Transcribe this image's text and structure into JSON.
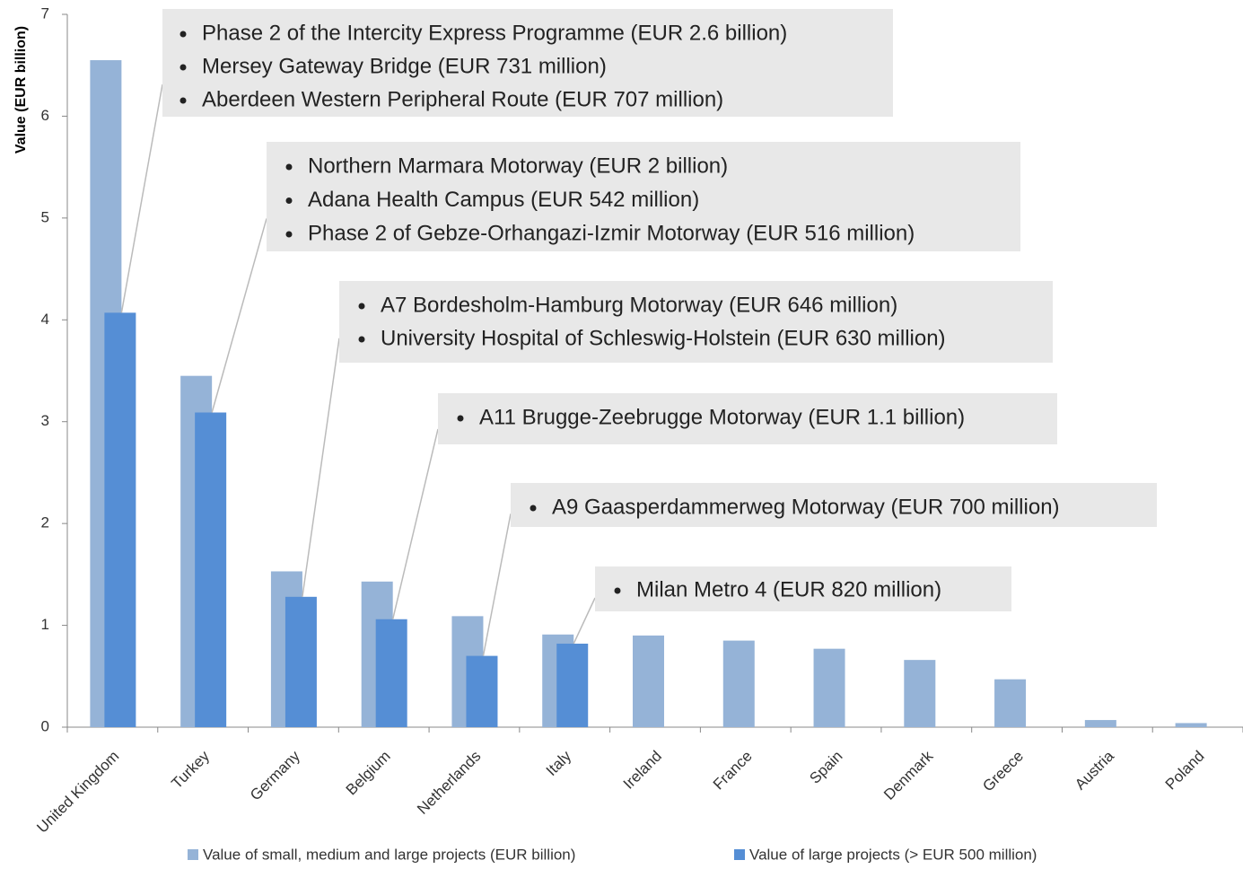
{
  "chart_data": {
    "type": "bar",
    "y_label": "Value (EUR billion)",
    "categories": [
      "United Kingdom",
      "Turkey",
      "Germany",
      "Belgium",
      "Netherlands",
      "Italy",
      "Ireland",
      "France",
      "Spain",
      "Denmark",
      "Greece",
      "Austria",
      "Poland"
    ],
    "series": [
      {
        "name": "Value of small, medium and large projects (EUR billion)",
        "color": "#95b3d7",
        "values": [
          6.55,
          3.45,
          1.53,
          1.43,
          1.09,
          0.91,
          0.9,
          0.85,
          0.77,
          0.66,
          0.47,
          0.07,
          0.04
        ]
      },
      {
        "name": "Value of large projects (> EUR 500 million)",
        "color": "#558ed5",
        "values": [
          4.07,
          3.09,
          1.28,
          1.06,
          0.7,
          0.82,
          null,
          null,
          null,
          null,
          null,
          null,
          null
        ]
      }
    ],
    "ylim": [
      0,
      7
    ],
    "yticks": [
      0,
      1,
      2,
      3,
      4,
      5,
      6,
      7
    ],
    "annotations": [
      [
        "Phase 2 of the Intercity Express Programme (EUR 2.6 billion)",
        "Mersey Gateway Bridge (EUR 731 million)",
        "Aberdeen Western Peripheral Route (EUR 707 million)"
      ],
      [
        "Northern Marmara Motorway (EUR 2 billion)",
        "Adana Health Campus (EUR 542 million)",
        "Phase 2 of Gebze-Orhangazi-Izmir  Motorway (EUR 516 million)"
      ],
      [
        "A7 Bordesholm-Hamburg  Motorway (EUR 646 million)",
        "University Hospital of Schleswig-Holstein (EUR 630 million)"
      ],
      [
        "A11 Brugge-Zeebrugge Motorway (EUR 1.1 billion)"
      ],
      [
        "A9 Gaasperdammerweg  Motorway (EUR 700 million)"
      ],
      [
        "Milan Metro 4 (EUR 820 million)"
      ]
    ]
  }
}
